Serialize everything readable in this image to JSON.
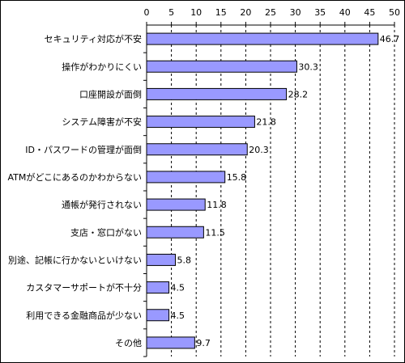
{
  "chart_data": {
    "type": "bar",
    "orientation": "horizontal",
    "title": "",
    "xlabel": "",
    "ylabel": "",
    "xlim": [
      0,
      50
    ],
    "x_ticks": [
      0,
      5,
      10,
      15,
      20,
      25,
      30,
      35,
      40,
      45,
      50
    ],
    "grid": "vertical dashed",
    "legend": "none",
    "bar_color": "#9999ff",
    "bar_border_color": "#000000",
    "categories": [
      "セキュリティ対応が不安",
      "操作がわかりにくい",
      "口座開設が面倒",
      "システム障害が不安",
      "ID・パスワードの管理が面倒",
      "ATMがどこにあるのかわからない",
      "通帳が発行されない",
      "支店・窓口がない",
      "別途、記帳に行かないといけない",
      "カスタマーサポートが不十分",
      "利用できる金融商品が少ない",
      "その他"
    ],
    "values": [
      46.7,
      30.3,
      28.2,
      21.8,
      20.3,
      15.8,
      11.8,
      11.5,
      5.8,
      4.5,
      4.5,
      9.7
    ],
    "value_labels": [
      "46.7",
      "30.3",
      "28.2",
      "21.8",
      "20.3",
      "15.8",
      "11.8",
      "11.5",
      "5.8",
      "4.5",
      "4.5",
      "9.7"
    ]
  }
}
